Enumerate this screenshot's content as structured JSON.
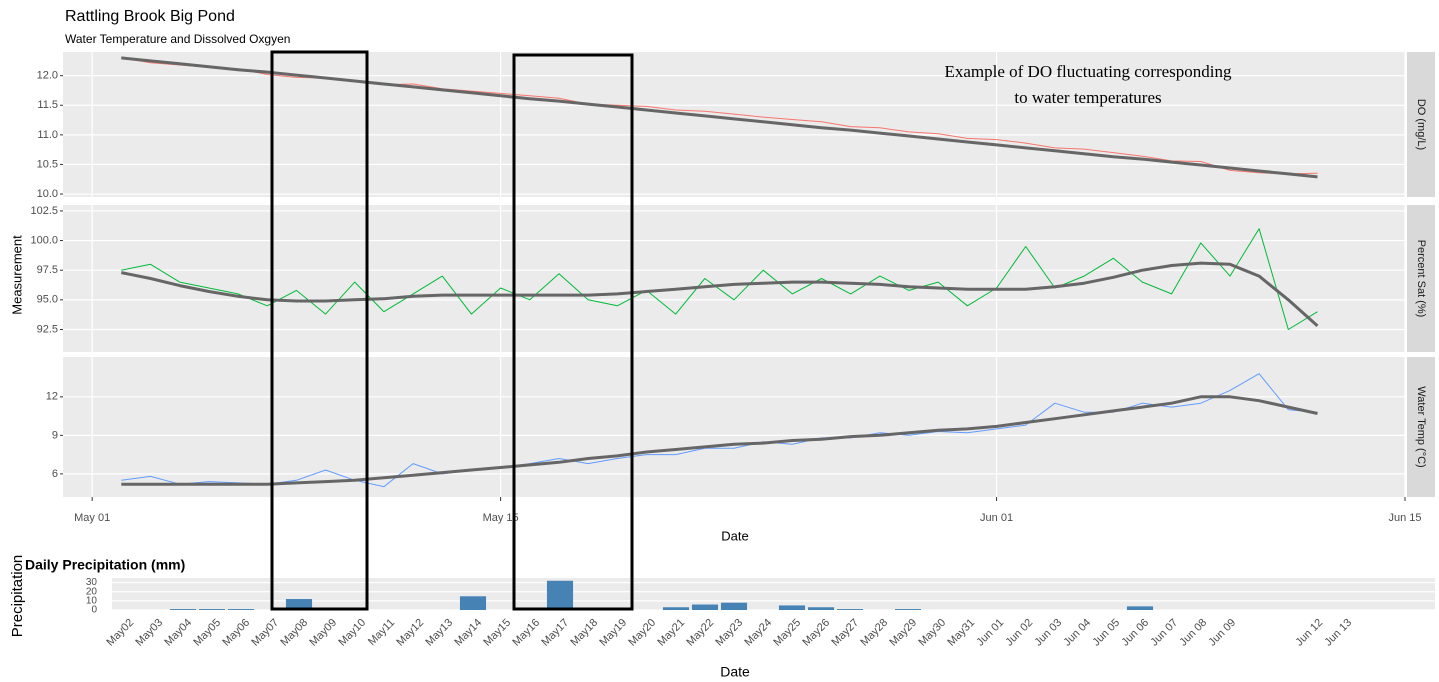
{
  "chart_data": [
    {
      "type": "line",
      "title": "Rattling Brook Big Pond",
      "subtitle": "Water Temperature and Dissolved Oxgyen",
      "xlabel": "Date",
      "ylabel": "Measurement",
      "annotation": [
        "Example of DO fluctuating corresponding",
        "to water temperatures"
      ],
      "smooth_color": "#666666",
      "grid": true,
      "xlim": [
        "Apr 30",
        "Jun 15"
      ],
      "xticks": [
        "May 01",
        "May 15",
        "Jun 01",
        "Jun 15"
      ],
      "x": [
        "May 02",
        "May 03",
        "May 04",
        "May 05",
        "May 06",
        "May 07",
        "May 08",
        "May 09",
        "May 10",
        "May 11",
        "May 12",
        "May 13",
        "May 14",
        "May 15",
        "May 16",
        "May 17",
        "May 18",
        "May 19",
        "May 20",
        "May 21",
        "May 22",
        "May 23",
        "May 24",
        "May 25",
        "May 26",
        "May 27",
        "May 28",
        "May 29",
        "May 30",
        "May 31",
        "Jun 01",
        "Jun 02",
        "Jun 03",
        "Jun 04",
        "Jun 05",
        "Jun 06",
        "Jun 07",
        "Jun 08",
        "Jun 09",
        "Jun 10",
        "Jun 11",
        "Jun 12"
      ],
      "series": [
        {
          "name": "DO (mg/L)",
          "color": "#f8766d",
          "ylim": [
            9.95,
            12.4
          ],
          "yticks": [
            {
              "value": 10,
              "label": "10.0"
            },
            10.5,
            {
              "value": 11,
              "label": "11.0"
            },
            11.5,
            {
              "value": 12,
              "label": "12.0"
            }
          ],
          "values": [
            12.3,
            12.22,
            12.18,
            12.14,
            12.12,
            12.02,
            11.97,
            11.96,
            11.92,
            11.85,
            11.86,
            11.78,
            11.74,
            11.7,
            11.66,
            11.62,
            11.52,
            11.5,
            11.48,
            11.42,
            11.4,
            11.35,
            11.3,
            11.26,
            11.22,
            11.14,
            11.12,
            11.05,
            11.02,
            10.94,
            10.92,
            10.86,
            10.78,
            10.76,
            10.7,
            10.64,
            10.56,
            10.55,
            10.4,
            10.36,
            10.34,
            10.35
          ],
          "smooth": [
            12.3,
            12.25,
            12.2,
            12.15,
            12.1,
            12.06,
            12.01,
            11.96,
            11.91,
            11.86,
            11.81,
            11.76,
            11.71,
            11.66,
            11.61,
            11.57,
            11.52,
            11.47,
            11.42,
            11.37,
            11.32,
            11.27,
            11.22,
            11.17,
            11.12,
            11.08,
            11.03,
            10.98,
            10.93,
            10.88,
            10.83,
            10.78,
            10.73,
            10.68,
            10.63,
            10.59,
            10.54,
            10.49,
            10.44,
            10.39,
            10.34,
            10.29
          ]
        },
        {
          "name": "Percent Sat (%)",
          "color": "#00ba38",
          "ylim": [
            90.6,
            103.0
          ],
          "yticks": [
            92.5,
            {
              "value": 95,
              "label": "95.0"
            },
            97.5,
            {
              "value": 100,
              "label": "100.0"
            },
            102.5
          ],
          "values": [
            97.5,
            98.0,
            96.5,
            96.0,
            95.5,
            94.5,
            95.8,
            93.8,
            96.5,
            94.0,
            95.5,
            97.0,
            93.8,
            96.0,
            95.0,
            97.2,
            95.0,
            94.5,
            95.8,
            93.8,
            96.8,
            95.0,
            97.5,
            95.5,
            96.8,
            95.5,
            97.0,
            95.8,
            96.5,
            94.5,
            96.0,
            99.5,
            96.0,
            97.0,
            98.5,
            96.5,
            95.5,
            99.8,
            97.0,
            101.0,
            92.5,
            94.0
          ],
          "smooth": [
            97.3,
            96.8,
            96.2,
            95.7,
            95.3,
            95.0,
            94.9,
            94.9,
            95.0,
            95.1,
            95.3,
            95.4,
            95.4,
            95.4,
            95.4,
            95.4,
            95.4,
            95.5,
            95.7,
            95.9,
            96.1,
            96.3,
            96.4,
            96.5,
            96.5,
            96.4,
            96.3,
            96.1,
            96.0,
            95.9,
            95.9,
            95.9,
            96.1,
            96.4,
            96.9,
            97.5,
            97.9,
            98.1,
            98.0,
            97.0,
            95.0,
            92.8
          ]
        },
        {
          "name": "Water Temp (°C)",
          "color": "#619cff",
          "ylim": [
            4.2,
            15.1
          ],
          "yticks": [
            6,
            9,
            12
          ],
          "values": [
            5.5,
            5.8,
            5.2,
            5.4,
            5.3,
            5.2,
            5.5,
            6.3,
            5.5,
            5.0,
            6.8,
            6.0,
            6.3,
            6.5,
            6.8,
            7.2,
            6.8,
            7.2,
            7.5,
            7.5,
            8.0,
            8.0,
            8.5,
            8.3,
            8.8,
            8.8,
            9.2,
            9.0,
            9.3,
            9.2,
            9.5,
            9.8,
            11.5,
            10.8,
            10.8,
            11.5,
            11.2,
            11.5,
            12.5,
            13.8,
            11.0,
            10.8
          ],
          "smooth": [
            5.2,
            5.2,
            5.2,
            5.2,
            5.2,
            5.2,
            5.3,
            5.4,
            5.5,
            5.7,
            5.9,
            6.1,
            6.3,
            6.5,
            6.7,
            6.9,
            7.2,
            7.4,
            7.7,
            7.9,
            8.1,
            8.3,
            8.4,
            8.6,
            8.7,
            8.9,
            9.0,
            9.2,
            9.4,
            9.5,
            9.7,
            10.0,
            10.3,
            10.6,
            10.9,
            11.2,
            11.5,
            12.0,
            12.0,
            11.7,
            11.2,
            10.7
          ]
        }
      ]
    },
    {
      "type": "bar",
      "title": "Daily Precipitation (mm)",
      "xlabel": "Date",
      "ylabel": "Precipitation",
      "color": "#4682b4",
      "grid": true,
      "ylim": [
        0,
        35
      ],
      "yticks": [
        0,
        10,
        20,
        30
      ],
      "categories": [
        "May02",
        "May03",
        "May04",
        "May05",
        "May06",
        "May07",
        "May08",
        "May09",
        "May10",
        "May11",
        "May12",
        "May13",
        "May14",
        "May15",
        "May16",
        "May17",
        "May18",
        "May19",
        "May20",
        "May21",
        "May22",
        "May23",
        "May24",
        "May25",
        "May26",
        "May27",
        "May28",
        "May29",
        "May30",
        "May31",
        "Jun 01",
        "Jun 02",
        "Jun 03",
        "Jun 04",
        "Jun 05",
        "Jun 06",
        "Jun 07",
        "Jun 08",
        "Jun 09",
        null,
        null,
        "Jun 12",
        "Jun 13"
      ],
      "values": [
        0,
        0,
        1,
        1,
        1,
        0,
        12,
        2,
        0,
        0,
        0,
        0,
        15,
        0,
        1,
        32,
        2,
        0,
        0,
        3,
        6,
        8,
        0,
        5,
        3,
        1,
        0,
        1,
        0,
        0,
        0,
        0,
        0,
        0,
        0,
        4,
        0,
        0,
        0,
        0,
        0,
        0,
        0
      ]
    }
  ]
}
